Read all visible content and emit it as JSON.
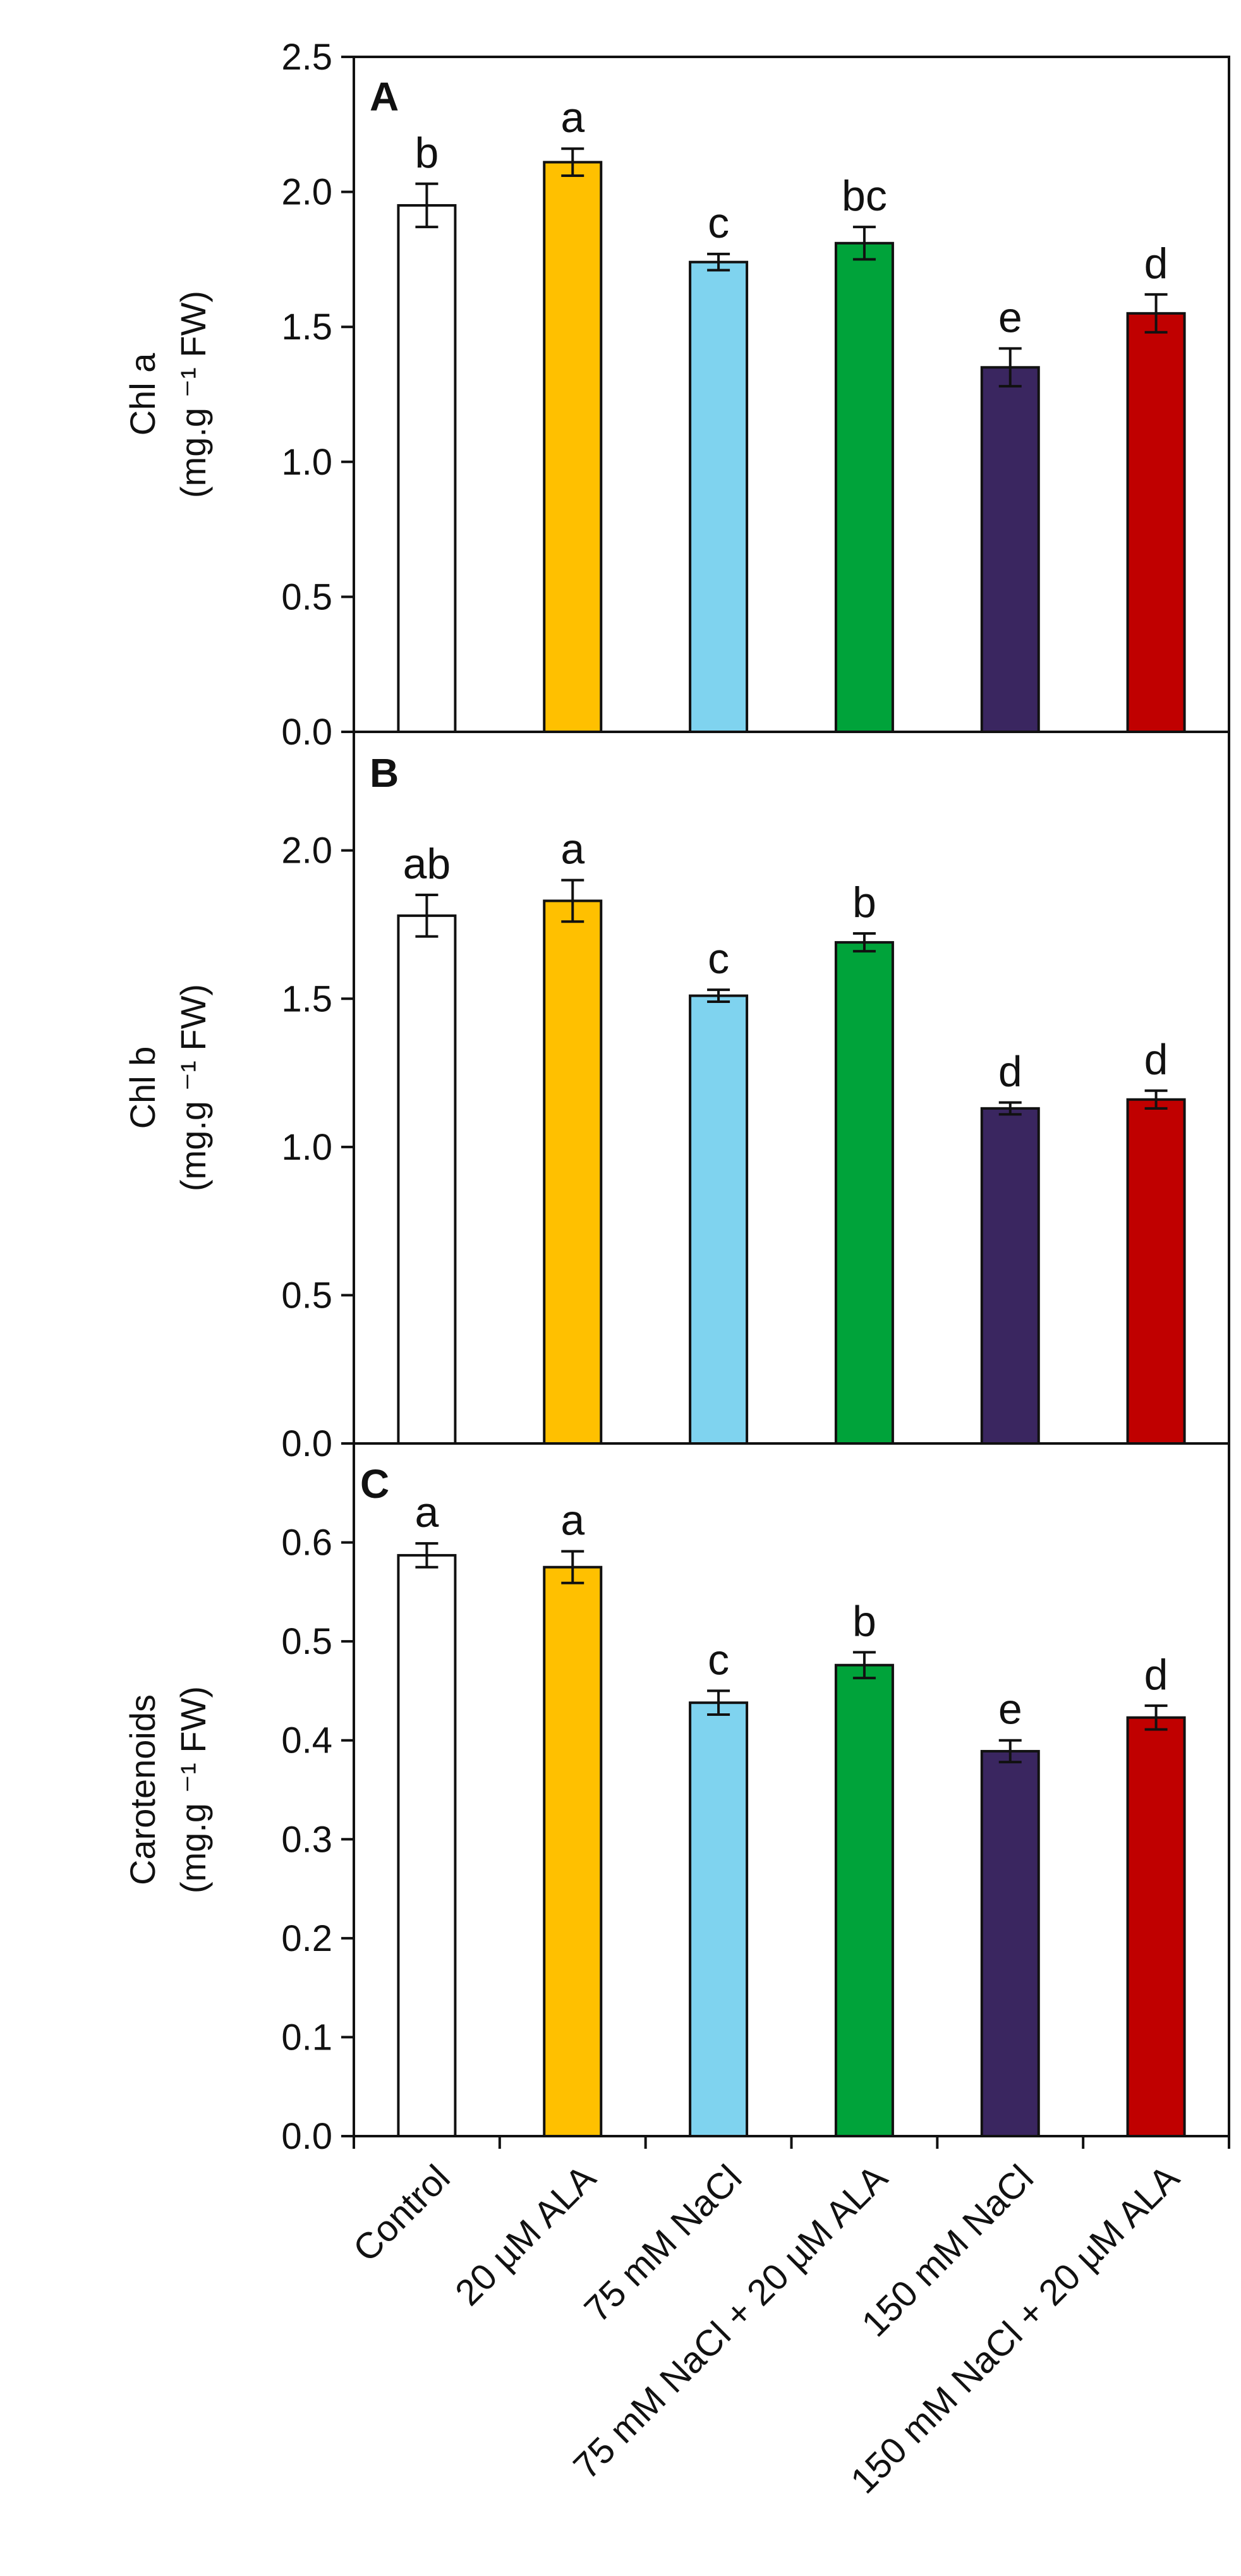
{
  "chart_data": [
    {
      "type": "bar",
      "panel": "A",
      "ylabel": "Chl a",
      "ylabel_unit": "(mg.g ⁻¹ FW)",
      "ylim": [
        0,
        2.5
      ],
      "yticks": [
        "0.0",
        "0.5",
        "1.0",
        "1.5",
        "2.0",
        "2.5"
      ],
      "ytick_values": [
        0,
        0.5,
        1.0,
        1.5,
        2.0,
        2.5
      ],
      "values": [
        1.95,
        2.11,
        1.74,
        1.81,
        1.35,
        1.55
      ],
      "errors": [
        0.08,
        0.05,
        0.03,
        0.06,
        0.07,
        0.07
      ],
      "letters": [
        "b",
        "a",
        "c",
        "bc",
        "e",
        "d"
      ]
    },
    {
      "type": "bar",
      "panel": "B",
      "ylabel": "Chl b",
      "ylabel_unit": "(mg.g ⁻¹ FW)",
      "ylim": [
        0,
        2.4
      ],
      "yticks": [
        "0.0",
        "0.5",
        "1.0",
        "1.5",
        "2.0"
      ],
      "ytick_values": [
        0,
        0.5,
        1.0,
        1.5,
        2.0
      ],
      "values": [
        1.78,
        1.83,
        1.51,
        1.69,
        1.13,
        1.16
      ],
      "errors": [
        0.07,
        0.07,
        0.02,
        0.03,
        0.02,
        0.03
      ],
      "letters": [
        "ab",
        "a",
        "c",
        "b",
        "d",
        "d"
      ]
    },
    {
      "type": "bar",
      "panel": "C",
      "ylabel": "Carotenoids",
      "ylabel_unit": "(mg.g ⁻¹ FW)",
      "ylim": [
        0,
        0.7
      ],
      "yticks": [
        "0.0",
        "0.1",
        "0.2",
        "0.3",
        "0.4",
        "0.5",
        "0.6"
      ],
      "ytick_values": [
        0,
        0.1,
        0.2,
        0.3,
        0.4,
        0.5,
        0.6
      ],
      "values": [
        0.587,
        0.575,
        0.438,
        0.476,
        0.389,
        0.423
      ],
      "errors": [
        0.012,
        0.016,
        0.012,
        0.013,
        0.011,
        0.012
      ],
      "letters": [
        "a",
        "a",
        "c",
        "b",
        "e",
        "d"
      ]
    }
  ],
  "categories": [
    "Control",
    "20 µM ALA",
    "75 mM NaCl",
    "75 mM NaCl + 20 µM ALA",
    "150 mM NaCl",
    "150 mM NaCl + 20 µM ALA"
  ],
  "colors": [
    "#ffffff",
    "#ffc000",
    "#7fd3ef",
    "#00a33a",
    "#3a2660",
    "#c00000"
  ],
  "stroke_color": "#111111"
}
